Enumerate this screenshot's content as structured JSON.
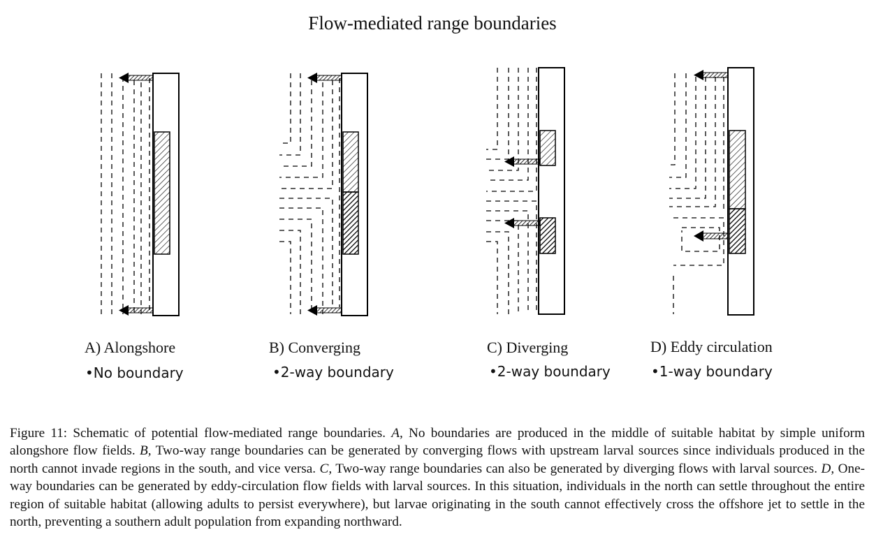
{
  "figure_title": "Flow-mediated range boundaries",
  "panels": [
    {
      "label": "A) Alongshore",
      "subtitle": "•No boundary"
    },
    {
      "label": "B) Converging",
      "subtitle": "•2-way boundary"
    },
    {
      "label": "C) Diverging",
      "subtitle": "•2-way boundary"
    },
    {
      "label": "D) Eddy circulation",
      "subtitle": "•1-way boundary"
    }
  ],
  "caption": {
    "lead": "Figure 11:",
    "t1": " Schematic of potential flow-mediated range boundaries. ",
    "i_a": "A,",
    "t2": " No boundaries are produced in the middle of suitable habitat by simple uniform alongshore flow fields. ",
    "i_b": "B,",
    "t3": " Two-way range boundaries can be generated by converging flows with upstream larval sources since individuals produced in the north cannot invade regions in the south, and vice versa. ",
    "i_c": "C,",
    "t4": " Two-way range boundaries can also be generated by diverging flows with larval sources. ",
    "i_d": "D,",
    "t5": " One-way boundaries can be generated by eddy-circulation flow fields with larval sources. In this situation, individuals in the north can settle throughout the entire region of suitable habitat (allowing adults to persist everywhere), but larvae originating in the south cannot effectively cross the offshore jet to settle in the north, preventing a southern adult population from expanding northward."
  }
}
